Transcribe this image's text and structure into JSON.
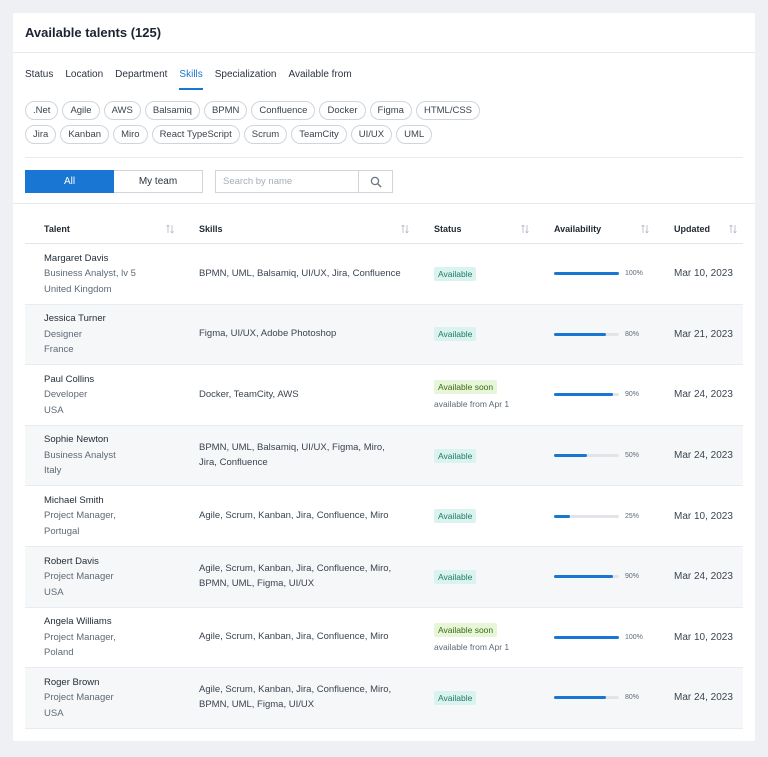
{
  "header": {
    "title": "Available talents (125)"
  },
  "tabs": [
    "Status",
    "Location",
    "Department",
    "Skills",
    "Specialization",
    "Available from"
  ],
  "active_tab": "Skills",
  "chips_row1": [
    ".Net",
    "Agile",
    "AWS",
    "Balsamiq",
    "BPMN",
    "Confluence",
    "Docker",
    "Figma",
    "HTML/CSS"
  ],
  "chips_row2": [
    "Jira",
    "Kanban",
    "Miro",
    "React TypeScript",
    "Scrum",
    "TeamCity",
    "UI/UX",
    "UML"
  ],
  "filter": {
    "all_label": "All",
    "my_team_label": "My team"
  },
  "search": {
    "placeholder": "Search by name",
    "value": ""
  },
  "columns": [
    "Talent",
    "Skills",
    "Status",
    "Availability",
    "Updated"
  ],
  "rows": [
    {
      "name": "Margaret Davis",
      "role": "Business Analyst, lv 5",
      "location": "United Kingdom",
      "skills": "BPMN, UML, Balsamiq, UI/UX, Jira, Confluence",
      "status": "Available",
      "available_from": "",
      "availability": 100,
      "availability_label": "100%",
      "updated": "Mar 10, 2023"
    },
    {
      "name": "Jessica Turner",
      "role": "Designer",
      "location": "France",
      "skills": "Figma, UI/UX, Adobe Photoshop",
      "status": "Available",
      "available_from": "",
      "availability": 80,
      "availability_label": "80%",
      "updated": "Mar 21, 2023"
    },
    {
      "name": "Paul Collins",
      "role": "Developer",
      "location": "USA",
      "skills": "Docker, TeamCity, AWS",
      "status": "Available soon",
      "available_from": "available from Apr 1",
      "availability": 90,
      "availability_label": "90%",
      "updated": "Mar 24, 2023"
    },
    {
      "name": "Sophie Newton",
      "role": "Business Analyst",
      "location": "Italy",
      "skills": "BPMN, UML, Balsamiq, UI/UX, Figma, Miro, Jira, Confluence",
      "status": "Available",
      "available_from": "",
      "availability": 50,
      "availability_label": "50%",
      "updated": "Mar 24, 2023"
    },
    {
      "name": "Michael Smith",
      "role": "Project Manager,",
      "location": "Portugal",
      "skills": "Agile, Scrum, Kanban, Jira, Confluence, Miro",
      "status": "Available",
      "available_from": "",
      "availability": 25,
      "availability_label": "25%",
      "updated": "Mar 10, 2023"
    },
    {
      "name": "Robert Davis",
      "role": "Project Manager",
      "location": "USA",
      "skills": "Agile, Scrum, Kanban, Jira, Confluence, Miro, BPMN, UML, Figma, UI/UX",
      "status": "Available",
      "available_from": "",
      "availability": 90,
      "availability_label": "90%",
      "updated": "Mar 24, 2023"
    },
    {
      "name": "Angela Williams",
      "role": "Project Manager,",
      "location": "Poland",
      "skills": "Agile, Scrum, Kanban, Jira, Confluence, Miro",
      "status": "Available soon",
      "available_from": "available from Apr 1",
      "availability": 100,
      "availability_label": "100%",
      "updated": "Mar 10, 2023"
    },
    {
      "name": "Roger Brown",
      "role": "Project Manager",
      "location": "USA",
      "skills": "Agile, Scrum, Kanban, Jira, Confluence, Miro, BPMN, UML, Figma, UI/UX",
      "status": "Available",
      "available_from": "",
      "availability": 80,
      "availability_label": "80%",
      "updated": "Mar 24, 2023"
    }
  ],
  "icons": {
    "search": "search-icon",
    "sort": "sort-arrows-icon"
  },
  "colors": {
    "accent": "#1976d2",
    "available_bg": "#dbf3ee",
    "available_text": "#1c7a6a",
    "soon_bg": "#e7f6d8",
    "soon_text": "#3b6a14"
  }
}
